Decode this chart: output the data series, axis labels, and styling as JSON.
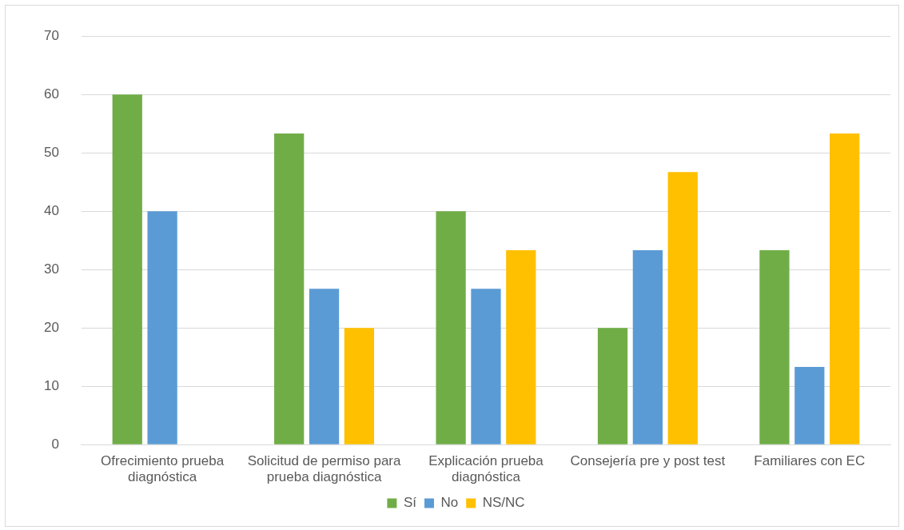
{
  "chart_data": {
    "type": "bar",
    "categories": [
      "Ofrecimiento prueba diagnóstica",
      "Solicitud de permiso para prueba diagnóstica",
      "Explicación prueba diagnóstica",
      "Consejería pre y post test",
      "Familiares con EC"
    ],
    "series": [
      {
        "name": "Sí",
        "color": "#70ad47",
        "values": [
          60,
          53.3,
          40,
          20,
          33.3
        ]
      },
      {
        "name": "No",
        "color": "#5b9bd5",
        "values": [
          40,
          26.7,
          26.7,
          33.3,
          13.3
        ]
      },
      {
        "name": "NS/NC",
        "color": "#ffc000",
        "values": [
          0,
          20,
          33.3,
          46.7,
          53.3
        ]
      }
    ],
    "ylim": [
      0,
      70
    ],
    "yticks": [
      0,
      10,
      20,
      30,
      40,
      50,
      60,
      70
    ],
    "grid": "y",
    "legend": "bottom"
  }
}
